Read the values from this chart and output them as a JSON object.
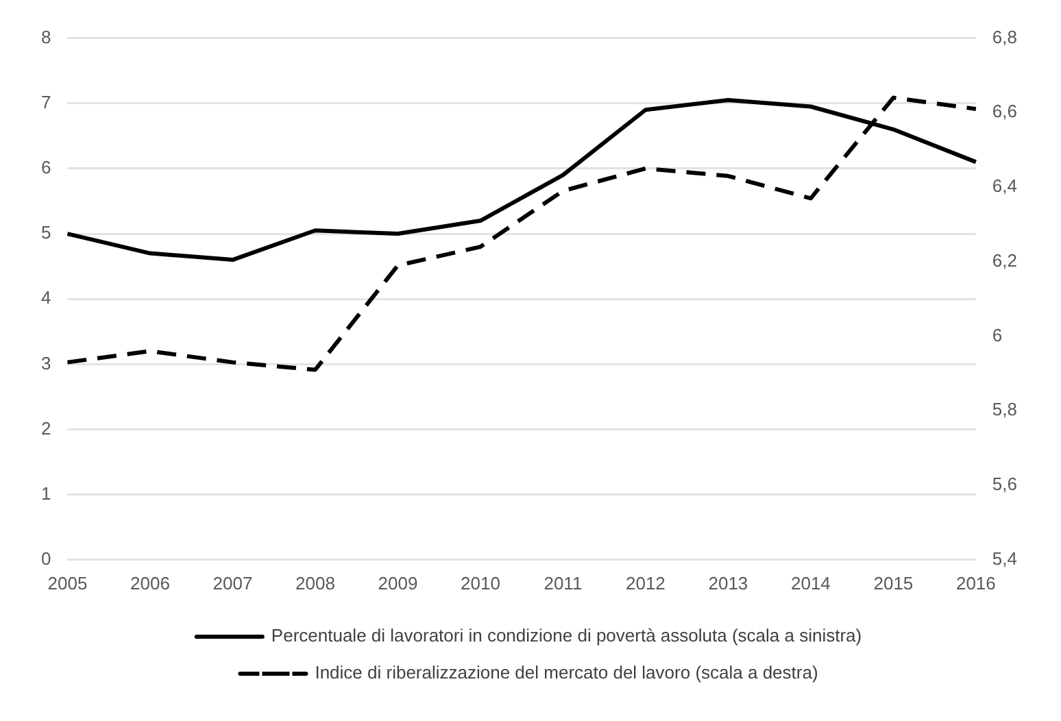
{
  "chart_data": {
    "type": "line",
    "categories": [
      "2005",
      "2006",
      "2007",
      "2008",
      "2009",
      "2010",
      "2011",
      "2012",
      "2013",
      "2014",
      "2015",
      "2016"
    ],
    "series": [
      {
        "name": "Percentuale di lavoratori in condizione di povertà assoluta (scala a sinistra)",
        "color": "#000000",
        "line_style": "solid",
        "values": [
          5.0,
          4.7,
          4.6,
          5.05,
          5.0,
          5.2,
          5.9,
          6.9,
          7.05,
          6.95,
          6.6,
          6.1
        ]
      },
      {
        "name": "Indice di riberalizzazione del mercato del lavoro (scala a destra)",
        "color": "#000000",
        "line_style": "dashed",
        "axis": "y2",
        "values": [
          5.93,
          5.96,
          5.93,
          5.91,
          6.19,
          6.24,
          6.39,
          6.45,
          6.43,
          6.37,
          6.64,
          6.61
        ]
      }
    ],
    "ylim": [
      0,
      8
    ],
    "yticks": [
      0,
      1,
      2,
      3,
      4,
      5,
      6,
      7,
      8
    ],
    "y2lim": [
      5.4,
      6.8
    ],
    "y2ticks": [
      {
        "value": 5.4,
        "label": "5,4"
      },
      {
        "value": 5.6,
        "label": "5,6"
      },
      {
        "value": 5.8,
        "label": "5,8"
      },
      6,
      {
        "value": 6.2,
        "label": "6,2"
      },
      {
        "value": 6.4,
        "label": "6,4"
      },
      {
        "value": 6.6,
        "label": "6,6"
      },
      {
        "value": 6.8,
        "label": "6,8"
      }
    ],
    "grid": "y",
    "legend": "bottom",
    "marker": "none"
  }
}
